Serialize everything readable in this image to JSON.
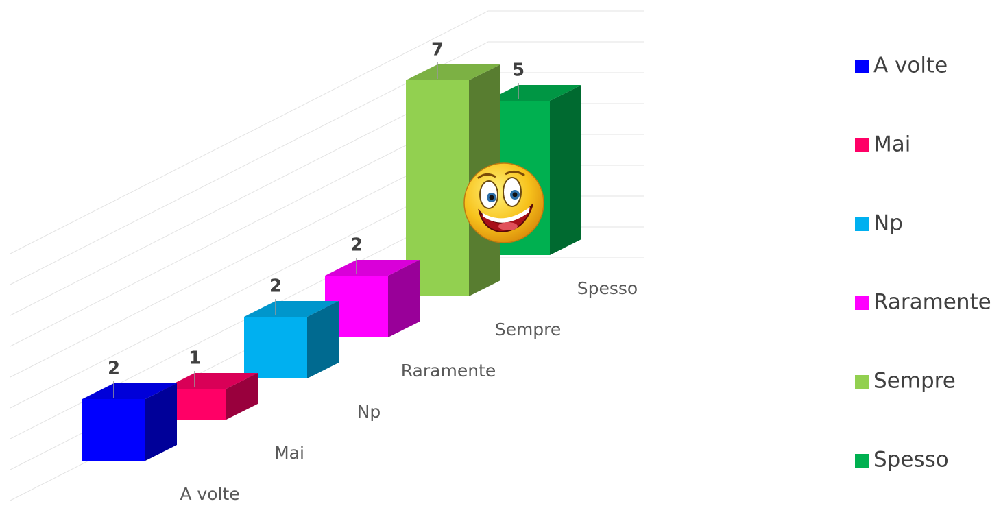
{
  "chart_data": {
    "type": "bar3d",
    "categories": [
      "A volte",
      "Mai",
      "Np",
      "Raramente",
      "Sempre",
      "Spesso"
    ],
    "values": [
      2,
      1,
      2,
      2,
      7,
      5
    ],
    "colors": [
      "#0000ff",
      "#ff0066",
      "#00b0f0",
      "#ff00ff",
      "#92d050",
      "#00b050"
    ],
    "ylim": [
      0,
      8
    ],
    "yticks": [
      0,
      1,
      2,
      3,
      4,
      5,
      6,
      7,
      8
    ],
    "show_tick_labels": false,
    "grid": true,
    "data_labels": true,
    "legend": "right"
  }
}
